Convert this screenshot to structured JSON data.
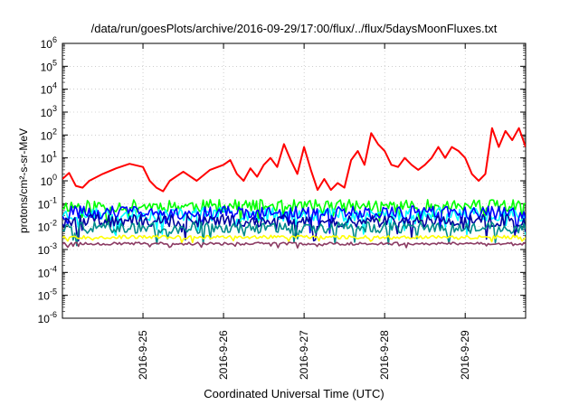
{
  "chart_data": {
    "type": "line",
    "title": "/data/run/goesPlots/archive/2016-09-29/17:00/flux/../flux/5daysMoonFluxes.txt",
    "xlabel": "Coordinated Universal Time (UTC)",
    "ylabel": "protons/cm²-s-sr-MeV",
    "x_type": "date",
    "x_range": [
      "2016-09-24T00:00",
      "2016-09-29T18:00"
    ],
    "y_scale": "log",
    "y_range": [
      1e-06,
      1000000.0
    ],
    "grid": true,
    "legend": "none",
    "x_ticks": [
      "2016-9-25",
      "2016-9-26",
      "2016-9-27",
      "2016-9-28",
      "2016-9-29"
    ],
    "x_tick_dates": [
      "2016-09-25",
      "2016-09-26",
      "2016-09-27",
      "2016-09-28",
      "2016-09-29"
    ],
    "y_tick_exponents": [
      -6,
      -5,
      -4,
      -3,
      -2,
      -1,
      0,
      1,
      2,
      3,
      4,
      5,
      6
    ],
    "y_tick_base": "10",
    "series": [
      {
        "color": "#ff0000",
        "points": [
          [
            "2016-09-24T00:00",
            1.2
          ],
          [
            "2016-09-24T02:00",
            2.2
          ],
          [
            "2016-09-24T04:00",
            0.6
          ],
          [
            "2016-09-24T06:00",
            0.5
          ],
          [
            "2016-09-24T08:00",
            1.0
          ],
          [
            "2016-09-24T12:00",
            2.0
          ],
          [
            "2016-09-24T16:00",
            3.5
          ],
          [
            "2016-09-24T20:00",
            5.5
          ],
          [
            "2016-09-25T00:00",
            4.0
          ],
          [
            "2016-09-25T02:00",
            1.0
          ],
          [
            "2016-09-25T04:00",
            0.5
          ],
          [
            "2016-09-25T06:00",
            0.35
          ],
          [
            "2016-09-25T08:00",
            1.0
          ],
          [
            "2016-09-25T12:00",
            2.5
          ],
          [
            "2016-09-25T16:00",
            1.0
          ],
          [
            "2016-09-25T20:00",
            3.0
          ],
          [
            "2016-09-26T00:00",
            5.0
          ],
          [
            "2016-09-26T02:00",
            8.0
          ],
          [
            "2016-09-26T04:00",
            2.0
          ],
          [
            "2016-09-26T06:00",
            1.0
          ],
          [
            "2016-09-26T08:00",
            3.5
          ],
          [
            "2016-09-26T10:00",
            1.5
          ],
          [
            "2016-09-26T12:00",
            5.0
          ],
          [
            "2016-09-26T14:00",
            10.0
          ],
          [
            "2016-09-26T16:00",
            4.0
          ],
          [
            "2016-09-26T18:00",
            40.0
          ],
          [
            "2016-09-26T20:00",
            8.0
          ],
          [
            "2016-09-26T22:00",
            2.0
          ],
          [
            "2016-09-27T00:00",
            30.0
          ],
          [
            "2016-09-27T02:00",
            3.0
          ],
          [
            "2016-09-27T04:00",
            0.4
          ],
          [
            "2016-09-27T06:00",
            1.2
          ],
          [
            "2016-09-27T08:00",
            0.4
          ],
          [
            "2016-09-27T10:00",
            0.8
          ],
          [
            "2016-09-27T12:00",
            0.5
          ],
          [
            "2016-09-27T14:00",
            8.0
          ],
          [
            "2016-09-27T16:00",
            20.0
          ],
          [
            "2016-09-27T18:00",
            5.0
          ],
          [
            "2016-09-27T20:00",
            120.0
          ],
          [
            "2016-09-27T22:00",
            40.0
          ],
          [
            "2016-09-28T00:00",
            20.0
          ],
          [
            "2016-09-28T02:00",
            5.0
          ],
          [
            "2016-09-28T04:00",
            4.0
          ],
          [
            "2016-09-28T06:00",
            10.0
          ],
          [
            "2016-09-28T08:00",
            5.0
          ],
          [
            "2016-09-28T10:00",
            3.0
          ],
          [
            "2016-09-28T12:00",
            5.0
          ],
          [
            "2016-09-28T14:00",
            10.0
          ],
          [
            "2016-09-28T16:00",
            30.0
          ],
          [
            "2016-09-28T18:00",
            10.0
          ],
          [
            "2016-09-28T20:00",
            30.0
          ],
          [
            "2016-09-28T22:00",
            20.0
          ],
          [
            "2016-09-29T00:00",
            10.0
          ],
          [
            "2016-09-29T02:00",
            2.0
          ],
          [
            "2016-09-29T04:00",
            1.0
          ],
          [
            "2016-09-29T06:00",
            2.0
          ],
          [
            "2016-09-29T08:00",
            200.0
          ],
          [
            "2016-09-29T10:00",
            30.0
          ],
          [
            "2016-09-29T12:00",
            150.0
          ],
          [
            "2016-09-29T14:00",
            60.0
          ],
          [
            "2016-09-29T16:00",
            200.0
          ],
          [
            "2016-09-29T18:00",
            30.0
          ]
        ]
      },
      {
        "color": "#00ff00",
        "base": 0.08,
        "spread": 0.55,
        "seed": 11
      },
      {
        "color": "#00ffff",
        "base": 0.035,
        "spread": 0.6,
        "seed": 23
      },
      {
        "color": "#0000ff",
        "base": 0.04,
        "spread": 0.6,
        "seed": 31
      },
      {
        "color": "#0000a0",
        "base": 0.018,
        "spread": 0.55,
        "seed": 47
      },
      {
        "color": "#008b8b",
        "base": 0.009,
        "spread": 0.5,
        "seed": 59
      },
      {
        "color": "#ffff00",
        "base": 0.0035,
        "spread": 0.15,
        "seed": 67
      },
      {
        "color": "#8b3a62",
        "base": 0.0018,
        "spread": 0.12,
        "seed": 79
      }
    ]
  }
}
